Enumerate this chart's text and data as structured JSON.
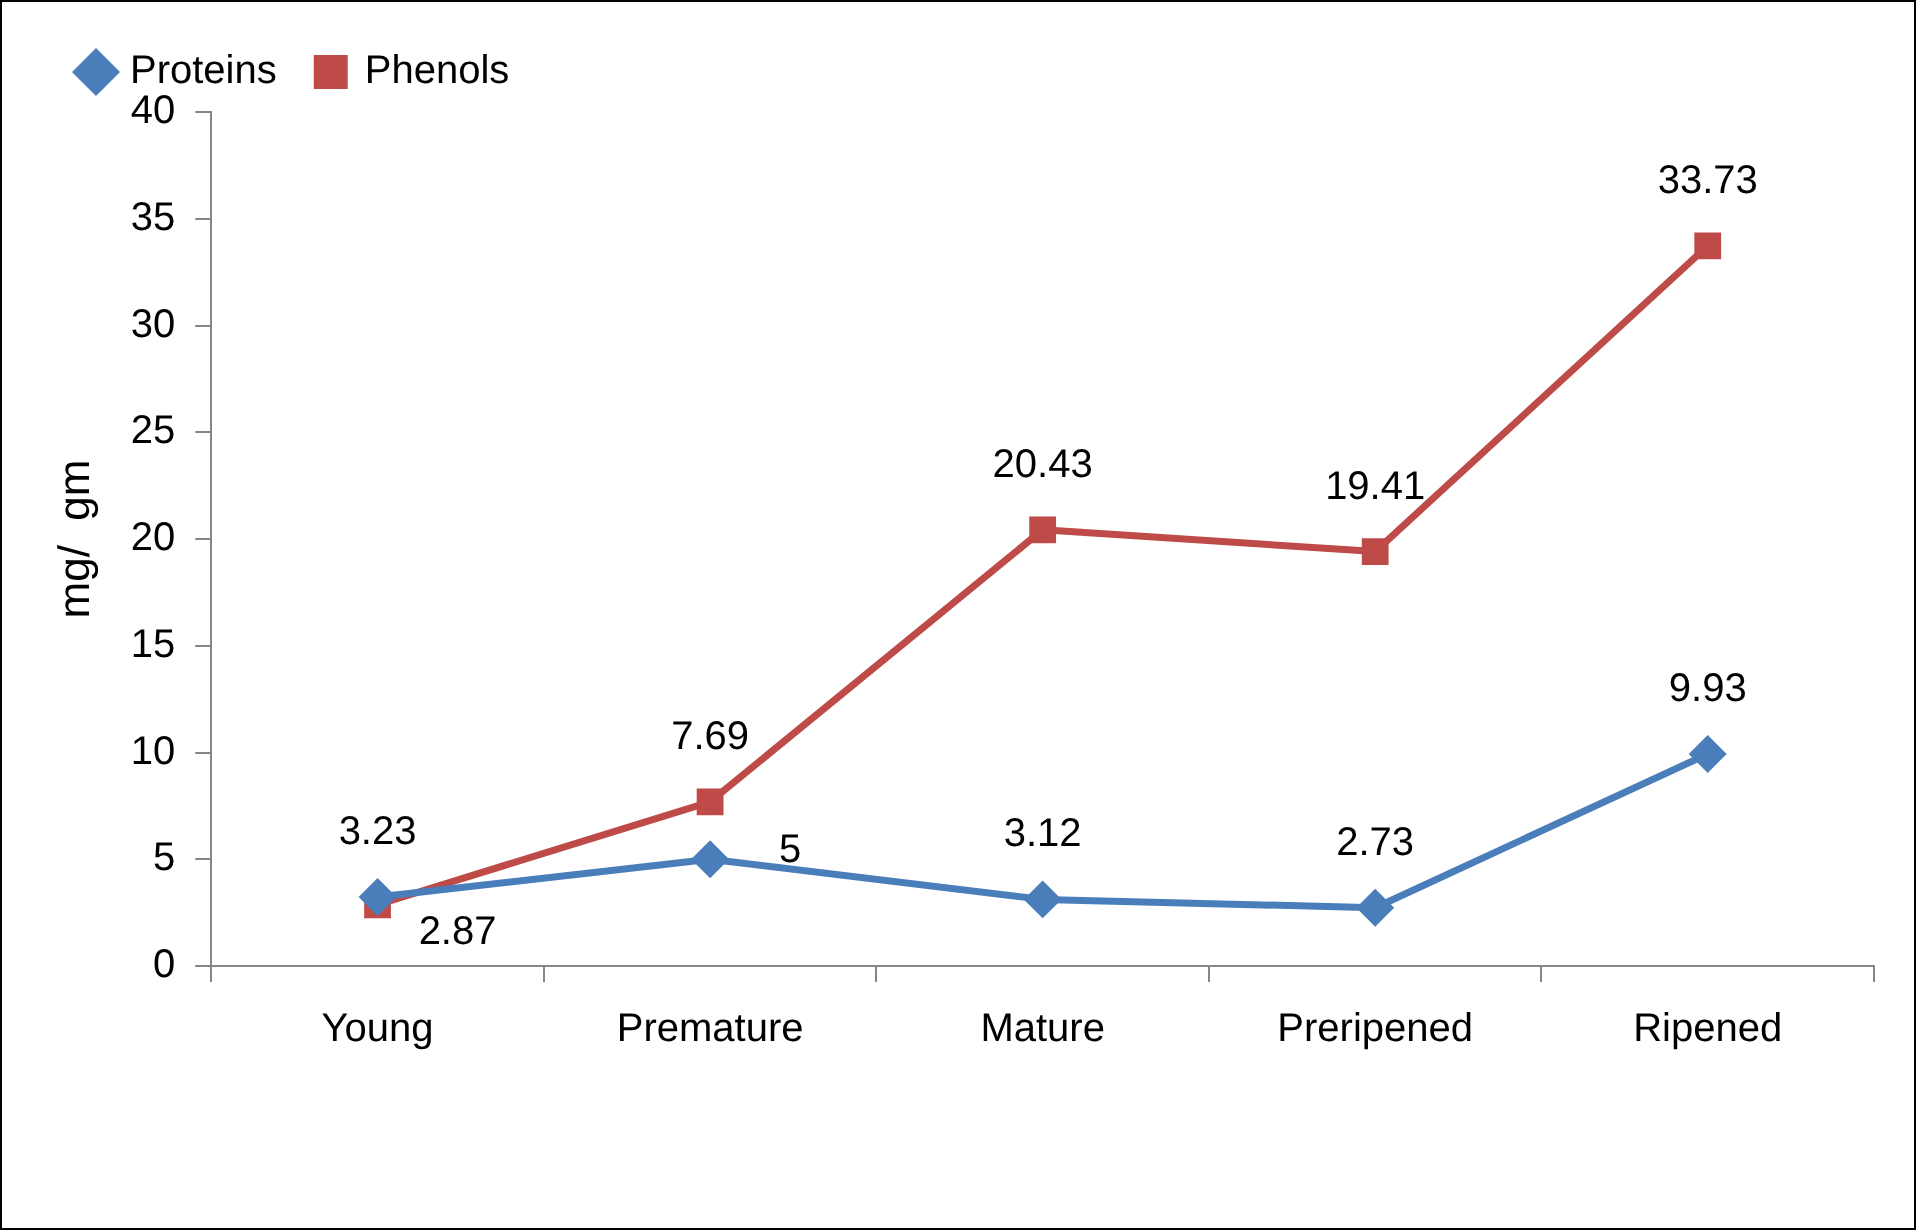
{
  "chart_data": {
    "type": "line",
    "ylabel": "mg/  gm",
    "categories": [
      "Young",
      "Premature",
      "Mature",
      "Preripened",
      "Ripened"
    ],
    "series": [
      {
        "name": "Proteins",
        "color": "#4a7ebb",
        "marker": "diamond",
        "values": [
          3.23,
          5,
          3.12,
          2.73,
          9.93
        ]
      },
      {
        "name": "Phenols",
        "color": "#be4b48",
        "marker": "square",
        "values": [
          2.87,
          7.69,
          20.43,
          19.41,
          33.73
        ]
      }
    ],
    "ylim": [
      0,
      40
    ],
    "yticks": [
      0,
      5,
      10,
      15,
      20,
      25,
      30,
      35,
      40
    ],
    "grid": false,
    "legend": "top left",
    "data_labels": true,
    "line_style": "solid"
  }
}
